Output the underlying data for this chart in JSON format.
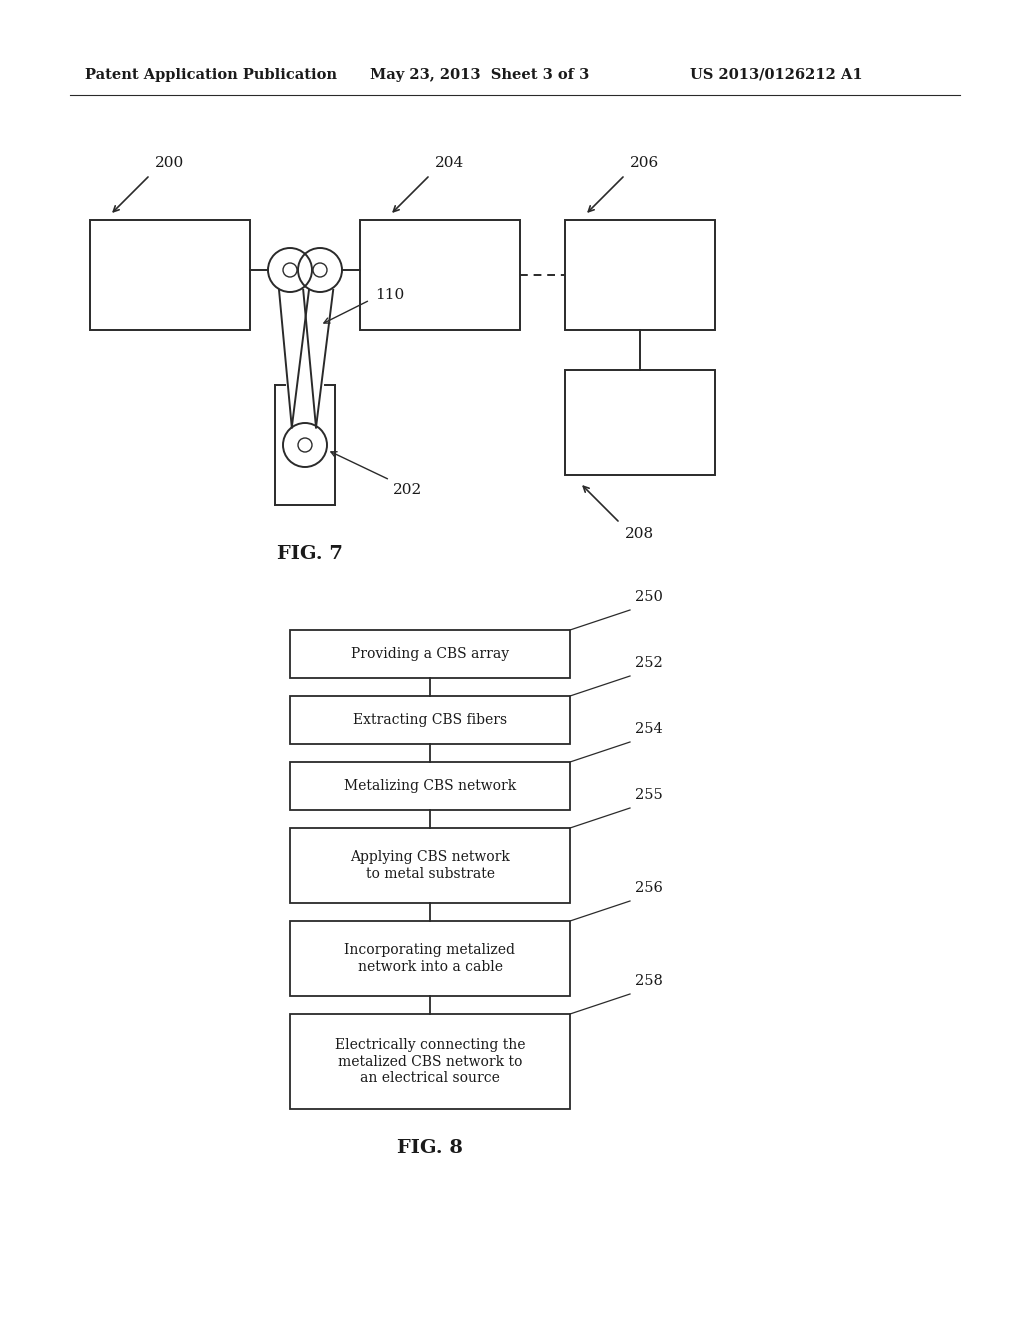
{
  "bg_color": "#ffffff",
  "header_left": "Patent Application Publication",
  "header_mid": "May 23, 2013  Sheet 3 of 3",
  "header_right": "US 2013/0126212 A1",
  "header_fontsize": 10.5,
  "fig7_label": "FIG. 7",
  "fig8_label": "FIG. 8",
  "flowchart_boxes": [
    {
      "label": "Providing a CBS array",
      "ref": "250",
      "nlines": 1
    },
    {
      "label": "Extracting CBS fibers",
      "ref": "252",
      "nlines": 1
    },
    {
      "label": "Metalizing CBS network",
      "ref": "254",
      "nlines": 1
    },
    {
      "label": "Applying CBS network\nto metal substrate",
      "ref": "255",
      "nlines": 2
    },
    {
      "label": "Incorporating metalized\nnetwork into a cable",
      "ref": "256",
      "nlines": 2
    },
    {
      "label": "Electrically connecting the\nmetalized CBS network to\nan electrical source",
      "ref": "258",
      "nlines": 3
    }
  ]
}
